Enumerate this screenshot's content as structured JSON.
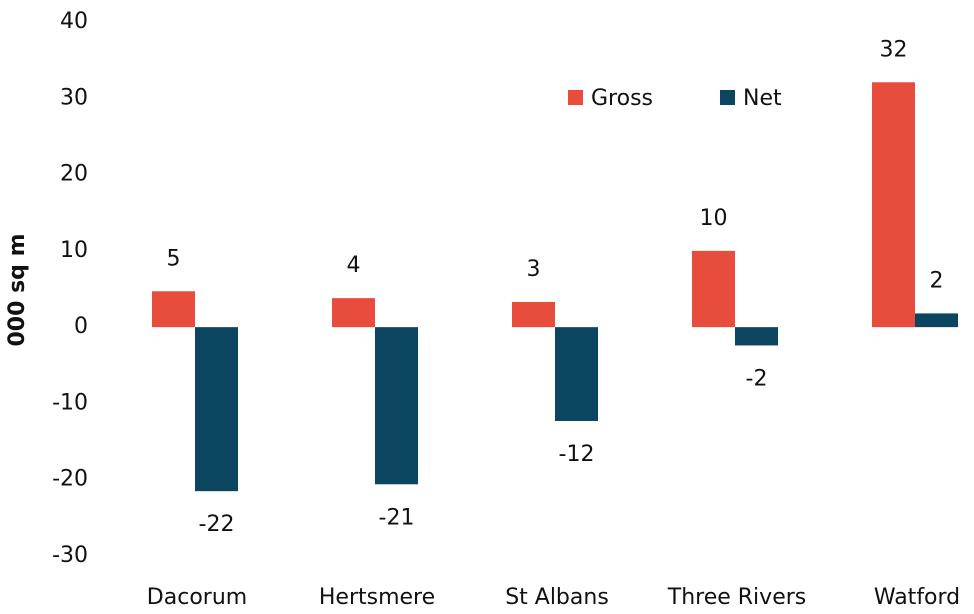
{
  "chart_data": {
    "type": "bar",
    "y_label": "000 sq m",
    "categories": [
      "Dacorum",
      "Hertsmere",
      "St Albans",
      "Three Rivers",
      "Watford"
    ],
    "series": [
      {
        "name": "Gross",
        "color": "#e84c3d",
        "values": [
          4.7,
          3.8,
          3.3,
          10.0,
          32.1
        ],
        "value_labels": [
          "5",
          "4",
          "3",
          "10",
          "32"
        ]
      },
      {
        "name": "Net",
        "color": "#0b4560",
        "values": [
          -21.5,
          -20.6,
          -12.3,
          -2.4,
          1.8
        ],
        "value_labels": [
          "-22",
          "-21",
          "-12",
          "-2",
          "2"
        ]
      }
    ],
    "ylim": [
      -30,
      40
    ],
    "yticks": [
      -30,
      -20,
      -10,
      0,
      10,
      20,
      30,
      40
    ],
    "grid": false,
    "legend": "top-right"
  }
}
